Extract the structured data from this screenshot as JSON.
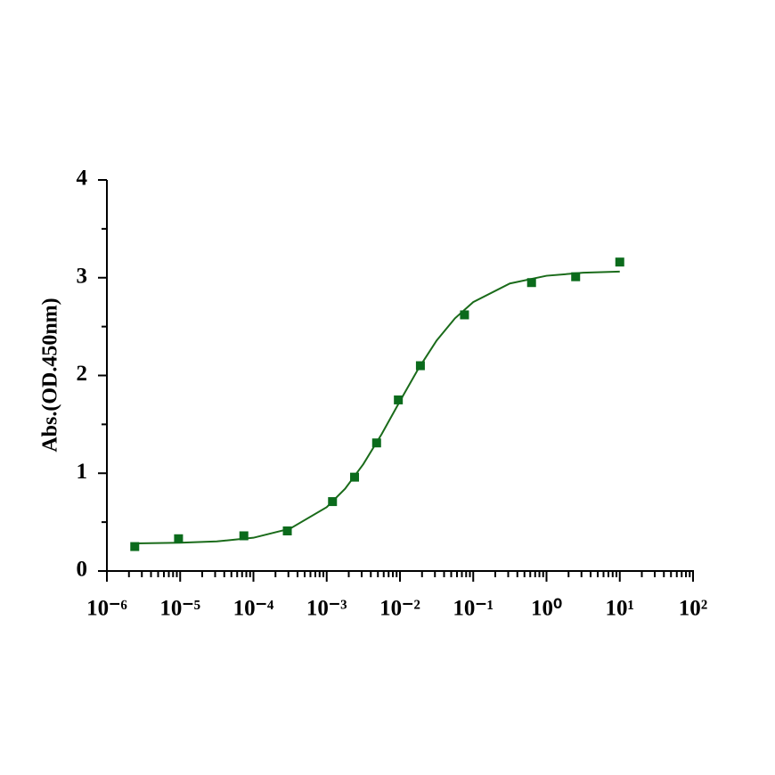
{
  "chart_data": {
    "type": "scatter",
    "y_label": "Abs.(OD.450nm)",
    "xscale": "log",
    "xlim": [
      1e-06,
      100
    ],
    "xticks": [
      {
        "value": 1e-06,
        "label": "10⁻⁶"
      },
      {
        "value": 1e-05,
        "label": "10⁻⁵"
      },
      {
        "value": 0.0001,
        "label": "10⁻⁴"
      },
      {
        "value": 0.001,
        "label": "10⁻³"
      },
      {
        "value": 0.01,
        "label": "10⁻²"
      },
      {
        "value": 0.1,
        "label": "10⁻¹"
      },
      {
        "value": 1,
        "label": "10⁰"
      },
      {
        "value": 10,
        "label": "10¹"
      },
      {
        "value": 100,
        "label": "10²"
      }
    ],
    "ylim": [
      0,
      4
    ],
    "yticks": [
      0,
      1,
      2,
      3,
      4
    ],
    "series": [
      {
        "type": "scatter",
        "color": "#0b6b1c",
        "x": [
          2.4e-06,
          9.5e-06,
          7.4e-05,
          0.00029,
          0.0012,
          0.0024,
          0.0048,
          0.0095,
          0.019,
          0.076,
          0.625,
          2.5,
          10
        ],
        "values": [
          0.25,
          0.33,
          0.36,
          0.41,
          0.71,
          0.96,
          1.31,
          1.75,
          2.1,
          2.62,
          2.95,
          3.01,
          3.16
        ]
      },
      {
        "type": "line",
        "color": "#1a6b1a",
        "x": [
          2.5e-06,
          1e-05,
          3.16e-05,
          0.0001,
          0.000316,
          0.001,
          0.00178,
          0.00316,
          0.00562,
          0.01,
          0.0178,
          0.0316,
          0.0562,
          0.1,
          0.316,
          1,
          3.16,
          10
        ],
        "values": [
          0.283,
          0.289,
          0.303,
          0.34,
          0.433,
          0.653,
          0.841,
          1.093,
          1.4,
          1.738,
          2.068,
          2.357,
          2.584,
          2.751,
          2.941,
          3.02,
          3.051,
          3.063
        ]
      }
    ]
  }
}
